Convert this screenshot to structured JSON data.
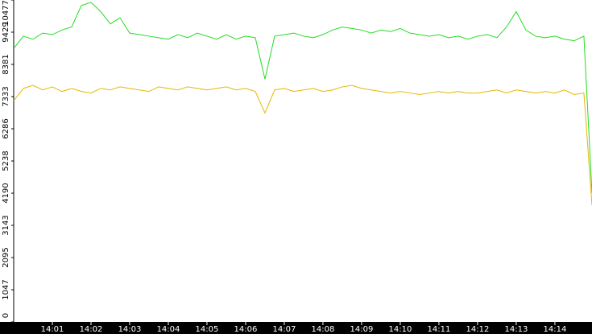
{
  "chart_data": {
    "type": "line",
    "x": [
      0,
      0.25,
      0.5,
      0.75,
      1,
      1.25,
      1.5,
      1.75,
      2,
      2.25,
      2.5,
      2.75,
      3,
      3.25,
      3.5,
      3.75,
      4,
      4.25,
      4.5,
      4.75,
      5,
      5.25,
      5.5,
      5.75,
      6,
      6.25,
      6.5,
      6.75,
      7,
      7.25,
      7.5,
      7.75,
      8,
      8.25,
      8.5,
      8.75,
      9,
      9.25,
      9.5,
      9.75,
      10,
      10.25,
      10.5,
      10.75,
      11,
      11.25,
      11.5,
      11.75,
      12,
      12.25,
      12.5,
      12.75,
      13,
      13.25,
      13.5,
      13.75,
      14,
      14.25,
      14.5,
      14.75,
      14.96
    ],
    "series": [
      {
        "color": "#22dd22",
        "values": [
          8900,
          9300,
          9200,
          9400,
          9350,
          9500,
          9600,
          10300,
          10400,
          10100,
          9700,
          9900,
          9400,
          9350,
          9300,
          9250,
          9200,
          9350,
          9250,
          9400,
          9300,
          9200,
          9350,
          9200,
          9300,
          9250,
          7900,
          9300,
          9350,
          9400,
          9300,
          9250,
          9350,
          9500,
          9600,
          9550,
          9500,
          9400,
          9500,
          9450,
          9550,
          9400,
          9350,
          9300,
          9350,
          9250,
          9300,
          9200,
          9300,
          9350,
          9250,
          9600,
          10100,
          9500,
          9300,
          9250,
          9300,
          9200,
          9150,
          9300,
          4200
        ]
      },
      {
        "color": "#e6b800",
        "values": [
          7200,
          7600,
          7700,
          7550,
          7650,
          7500,
          7600,
          7500,
          7450,
          7600,
          7550,
          7650,
          7600,
          7550,
          7500,
          7650,
          7600,
          7550,
          7650,
          7600,
          7550,
          7600,
          7650,
          7550,
          7600,
          7500,
          6800,
          7550,
          7600,
          7500,
          7550,
          7600,
          7500,
          7550,
          7650,
          7700,
          7600,
          7550,
          7500,
          7450,
          7500,
          7450,
          7400,
          7450,
          7500,
          7450,
          7500,
          7450,
          7450,
          7500,
          7550,
          7450,
          7550,
          7500,
          7450,
          7500,
          7450,
          7550,
          7400,
          7450,
          3800
        ]
      }
    ],
    "xlim": [
      0,
      14.96
    ],
    "xticks": [
      {
        "value": 1,
        "label": "14:01"
      },
      {
        "value": 2,
        "label": "14:02"
      },
      {
        "value": 3,
        "label": "14:03"
      },
      {
        "value": 4,
        "label": "14:04"
      },
      {
        "value": 5,
        "label": "14:05"
      },
      {
        "value": 6,
        "label": "14:06"
      },
      {
        "value": 7,
        "label": "14:07"
      },
      {
        "value": 8,
        "label": "14:08"
      },
      {
        "value": 9,
        "label": "14:09"
      },
      {
        "value": 10,
        "label": "14:10"
      },
      {
        "value": 11,
        "label": "14:11"
      },
      {
        "value": 12,
        "label": "14:12"
      },
      {
        "value": 13,
        "label": "14:13"
      },
      {
        "value": 14,
        "label": "14:14"
      }
    ],
    "ylim": [
      0,
      10477
    ],
    "yticks": [
      0,
      1047,
      2095,
      3143,
      4190,
      5238,
      6286,
      7333,
      8381,
      9429,
      10477
    ]
  }
}
